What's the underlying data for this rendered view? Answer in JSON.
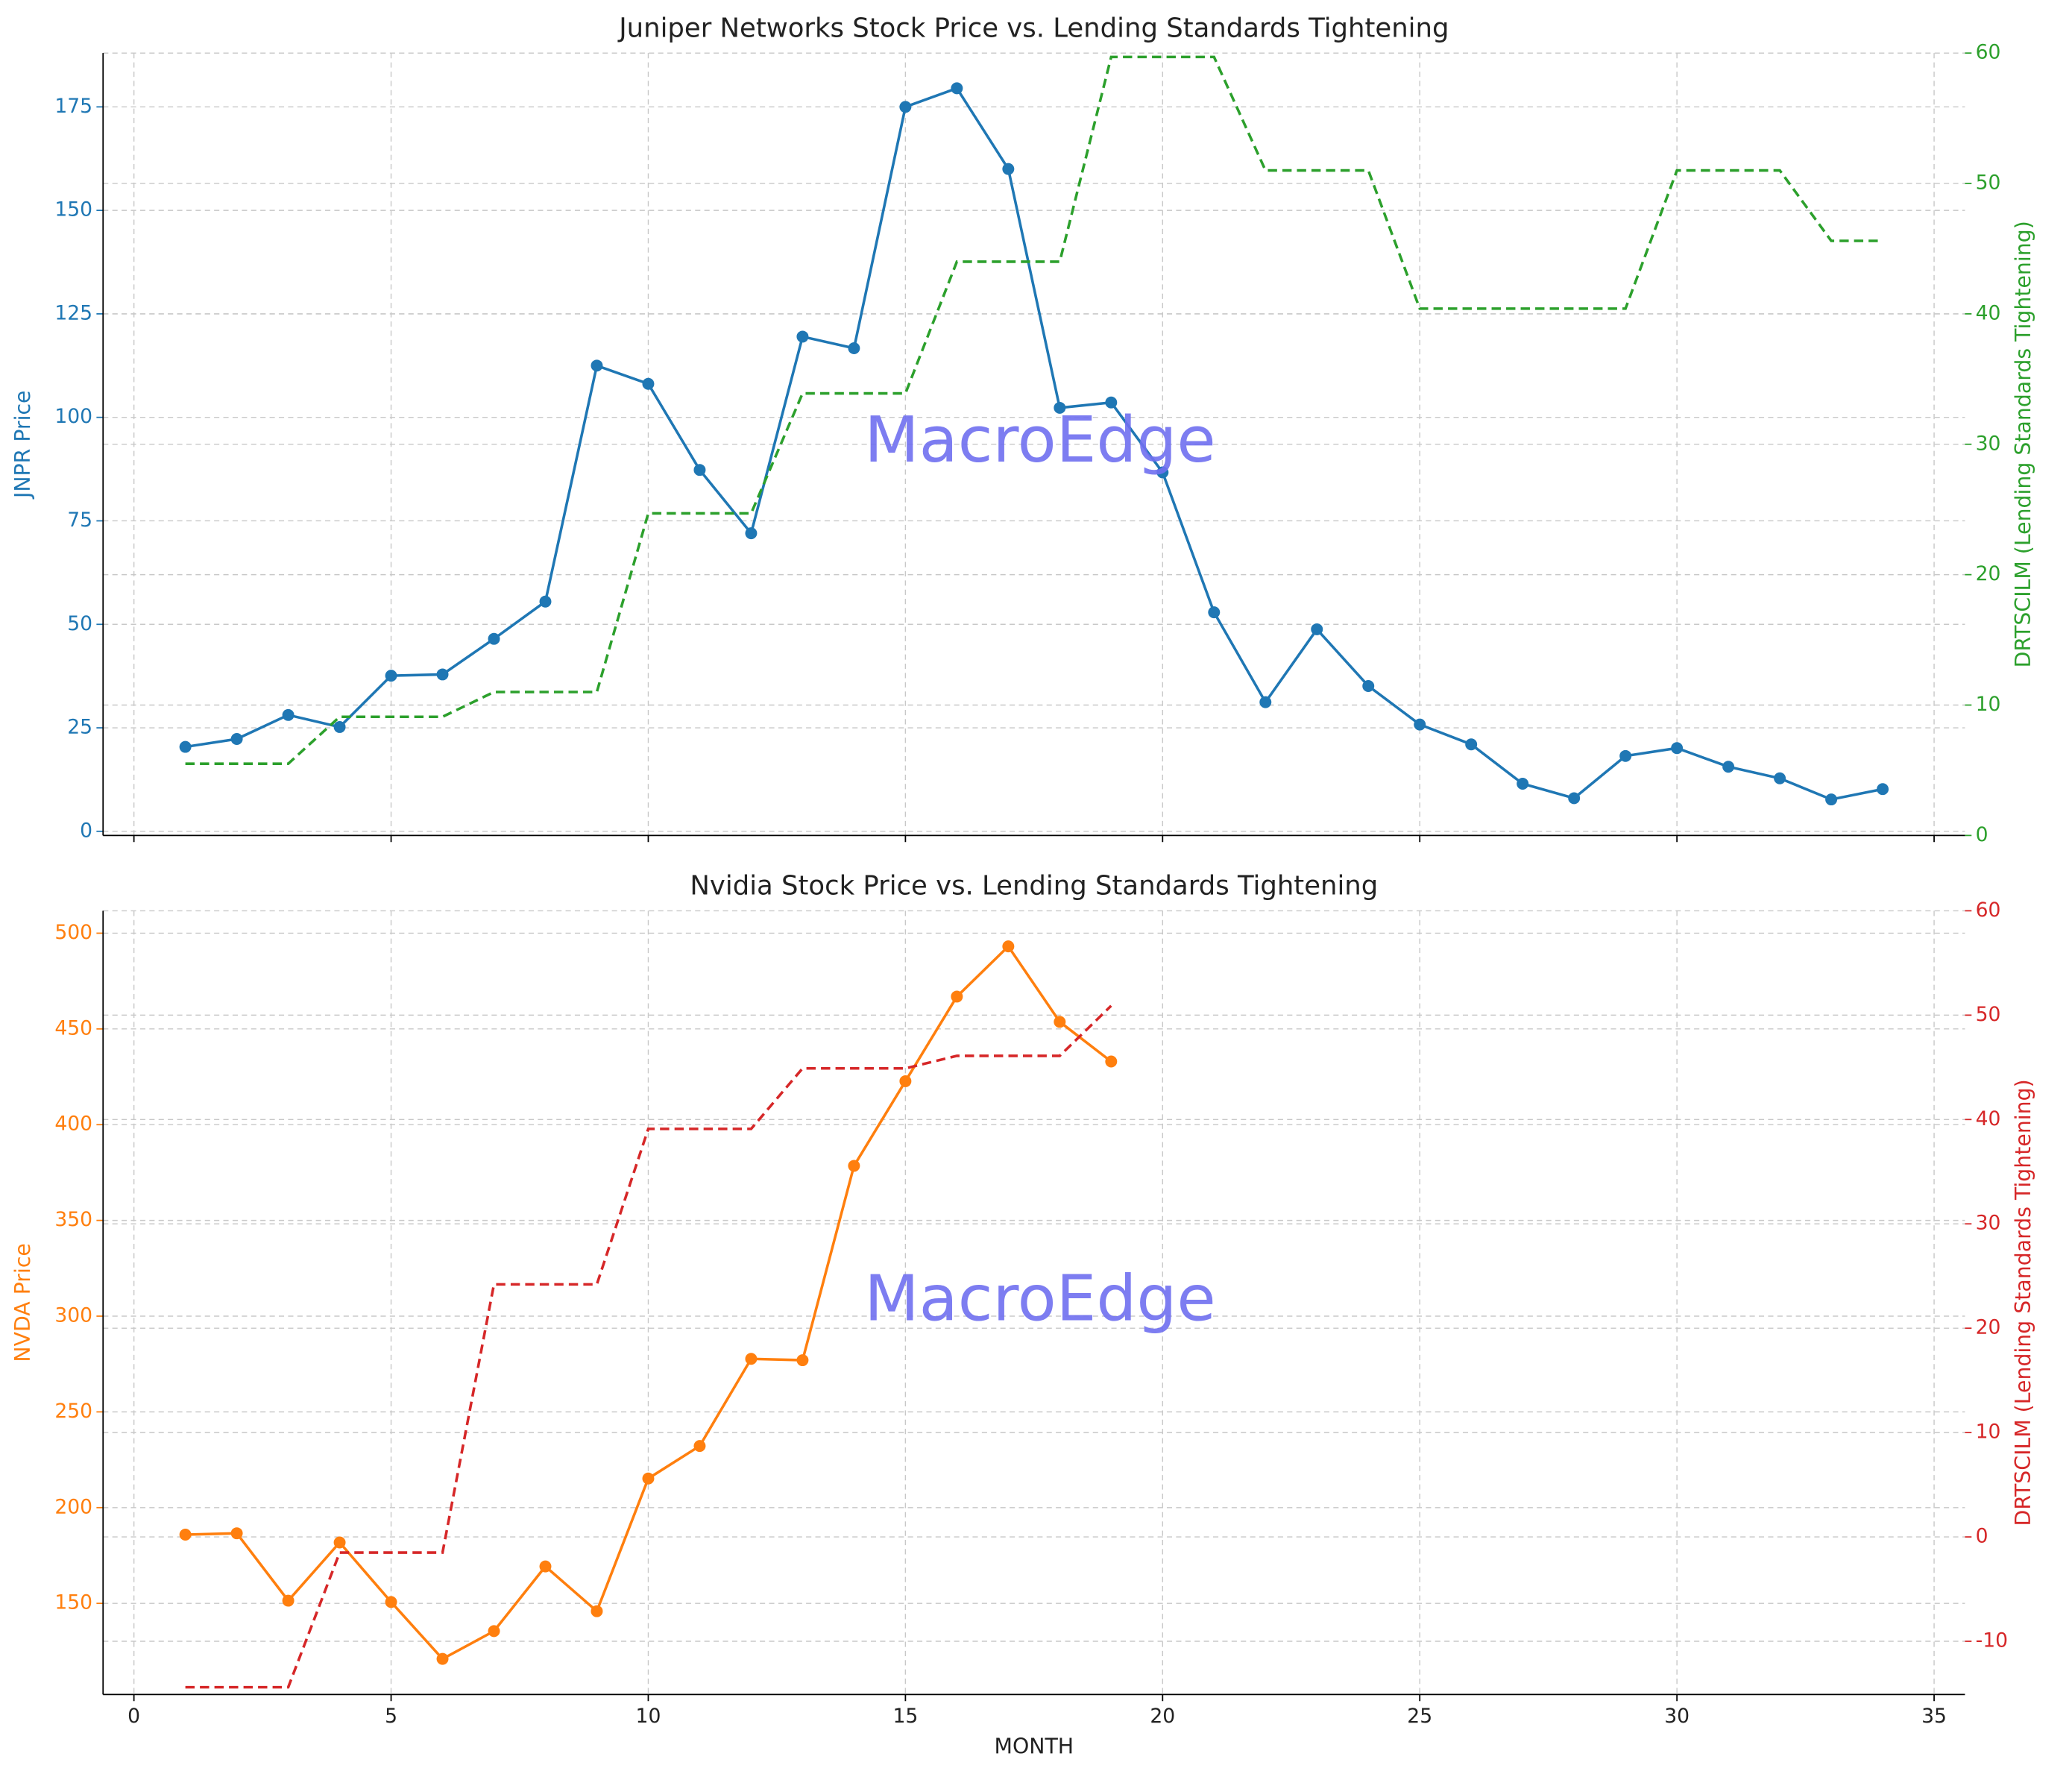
{
  "chart_data": [
    {
      "type": "line",
      "title": "Juniper Networks Stock Price vs. Lending Standards Tightening",
      "ylabel": "JNPR Price",
      "y2label": "DRTSCILM (Lending Standards Tightening)",
      "watermark": "MacroEdge",
      "watermark_color": "#7070f0",
      "grid": true,
      "x": [
        1,
        2,
        3,
        4,
        5,
        6,
        7,
        8,
        9,
        10,
        11,
        12,
        13,
        14,
        15,
        16,
        17,
        18,
        19,
        20,
        21,
        22,
        23,
        24,
        25,
        26,
        27,
        28,
        29,
        30,
        31,
        32,
        33,
        34
      ],
      "xlim": [
        -0.6,
        35.6
      ],
      "xticks": [
        0,
        5,
        10,
        15,
        20,
        25,
        30,
        35
      ],
      "ylim": [
        -1,
        188
      ],
      "yticks": [
        0,
        25,
        50,
        75,
        100,
        125,
        150,
        175
      ],
      "y2lim": [
        0,
        60
      ],
      "y2ticks": [
        0,
        10,
        20,
        30,
        40,
        50,
        60
      ],
      "series": [
        {
          "color": "#1f77b4",
          "axis": "y",
          "marker": true,
          "linestyle": "solid",
          "values": [
            20.4,
            22.3,
            28.1,
            25.2,
            37.6,
            37.9,
            46.5,
            55.5,
            112.5,
            108.1,
            87.3,
            72,
            119.5,
            116.7,
            175,
            179.5,
            160,
            102.3,
            103.6,
            86.7,
            52.9,
            31.2,
            48.8,
            35.1,
            25.8,
            21,
            11.5,
            8,
            18.2,
            20.1,
            15.6,
            12.8,
            7.7,
            10.2
          ]
        },
        {
          "color": "#2ca02c",
          "axis": "y2",
          "marker": false,
          "linestyle": "dashed",
          "values": [
            5.5,
            5.5,
            5.5,
            9.1,
            9.1,
            9.1,
            11,
            11,
            11,
            24.7,
            24.7,
            24.7,
            33.9,
            33.9,
            33.9,
            44,
            44,
            44,
            59.7,
            59.7,
            59.7,
            51,
            51,
            51,
            40.4,
            40.4,
            40.4,
            40.4,
            40.4,
            51,
            51,
            51,
            45.6,
            45.6
          ]
        }
      ]
    },
    {
      "type": "line",
      "title": "Nvidia Stock Price vs. Lending Standards Tightening",
      "xlabel": "MONTH",
      "ylabel": "NVDA Price",
      "y2label": "DRTSCILM (Lending Standards Tightening)",
      "watermark": "MacroEdge",
      "watermark_color": "#7070f0",
      "grid": true,
      "x": [
        1,
        2,
        3,
        4,
        5,
        6,
        7,
        8,
        9,
        10,
        11,
        12,
        13,
        14,
        15,
        16,
        17,
        18,
        19
      ],
      "xlim": [
        -0.6,
        35.6
      ],
      "xticks": [
        0,
        5,
        10,
        15,
        20,
        25,
        30,
        35
      ],
      "ylim": [
        102.4,
        511.7
      ],
      "yticks": [
        150,
        200,
        250,
        300,
        350,
        400,
        450,
        500
      ],
      "y2lim": [
        -15.1,
        60
      ],
      "y2ticks": [
        -10,
        0,
        10,
        20,
        30,
        40,
        50,
        60
      ],
      "series": [
        {
          "color": "#ff7f0e",
          "axis": "y",
          "marker": true,
          "linestyle": "solid",
          "values": [
            185.9,
            186.6,
            151.4,
            181.8,
            150.7,
            121,
            135.5,
            169.3,
            145.9,
            215.2,
            232.2,
            277.7,
            277,
            378.5,
            422.7,
            466.9,
            493.1,
            453.7,
            433
          ]
        },
        {
          "color": "#d62728",
          "axis": "y2",
          "marker": false,
          "linestyle": "dashed",
          "values": [
            -14.4,
            -14.4,
            -14.4,
            -1.5,
            -1.5,
            -1.5,
            24.2,
            24.2,
            24.2,
            39.1,
            39.1,
            39.1,
            44.9,
            44.9,
            44.9,
            46.1,
            46.1,
            46.1,
            50.9
          ]
        }
      ]
    }
  ]
}
